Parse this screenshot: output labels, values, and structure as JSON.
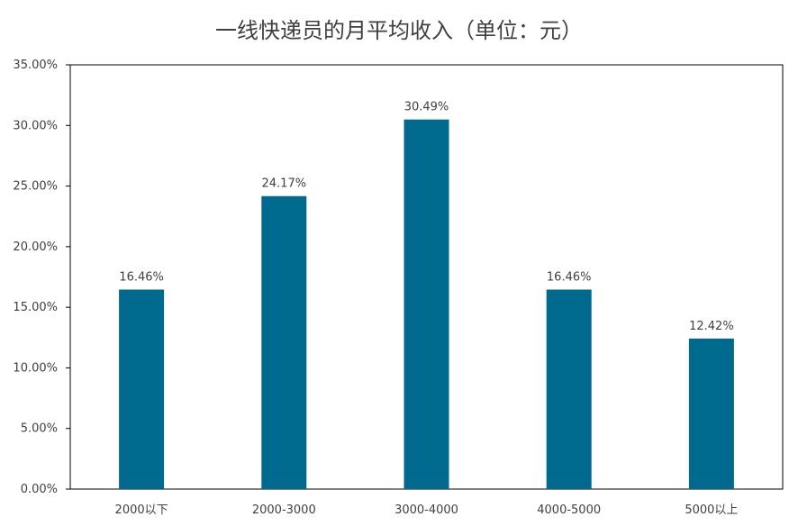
{
  "chart_data": {
    "type": "bar",
    "title": "一线快递员的月平均收入（单位：元）",
    "xlabel": "",
    "ylabel": "",
    "categories": [
      "2000以下",
      "2000-3000",
      "3000-4000",
      "4000-5000",
      "5000以上"
    ],
    "values": [
      16.46,
      24.17,
      30.49,
      16.46,
      12.42
    ],
    "data_labels": [
      "16.46%",
      "24.17%",
      "30.49%",
      "16.46%",
      "12.42%"
    ],
    "y_ticks": [
      "0.00%",
      "5.00%",
      "10.00%",
      "15.00%",
      "20.00%",
      "25.00%",
      "30.00%",
      "35.00%"
    ],
    "y_tick_values": [
      0,
      5,
      10,
      15,
      20,
      25,
      30,
      35
    ],
    "ylim": [
      0,
      35
    ],
    "grid": false,
    "legend": "none",
    "colors": {
      "bar": "#006a8e",
      "text": "#404040",
      "axis": "#000000"
    }
  }
}
